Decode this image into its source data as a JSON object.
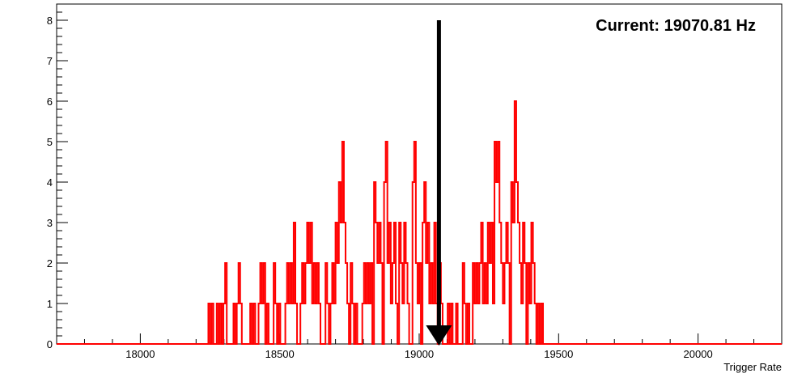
{
  "chart_data": {
    "type": "histogram",
    "xlabel": "Trigger Rate",
    "ylabel": "",
    "xlim": [
      17700,
      20300
    ],
    "ylim": [
      0,
      8.4
    ],
    "x_ticks": [
      18000,
      18500,
      19000,
      19500,
      20000
    ],
    "y_ticks": [
      0,
      1,
      2,
      3,
      4,
      5,
      6,
      7,
      8
    ],
    "annotation": "Current: 19070.81 Hz",
    "marker_x": 19070.81,
    "marker_top": 8,
    "line_color": "#ff0000",
    "marker_color": "#000000",
    "bin_width": 6,
    "bins": [
      [
        18244,
        1
      ],
      [
        18250,
        0
      ],
      [
        18256,
        1
      ],
      [
        18274,
        1
      ],
      [
        18280,
        0
      ],
      [
        18286,
        1
      ],
      [
        18292,
        0
      ],
      [
        18298,
        1
      ],
      [
        18304,
        2
      ],
      [
        18310,
        0
      ],
      [
        18334,
        1
      ],
      [
        18340,
        0
      ],
      [
        18346,
        1
      ],
      [
        18352,
        2
      ],
      [
        18358,
        1
      ],
      [
        18364,
        0
      ],
      [
        18394,
        1
      ],
      [
        18400,
        0
      ],
      [
        18406,
        1
      ],
      [
        18424,
        1
      ],
      [
        18430,
        2
      ],
      [
        18436,
        1
      ],
      [
        18442,
        2
      ],
      [
        18448,
        0
      ],
      [
        18454,
        1
      ],
      [
        18478,
        2
      ],
      [
        18484,
        1
      ],
      [
        18490,
        0
      ],
      [
        18496,
        1
      ],
      [
        18520,
        1
      ],
      [
        18526,
        2
      ],
      [
        18532,
        1
      ],
      [
        18538,
        2
      ],
      [
        18544,
        1
      ],
      [
        18550,
        3
      ],
      [
        18556,
        1
      ],
      [
        18562,
        0
      ],
      [
        18574,
        1
      ],
      [
        18580,
        2
      ],
      [
        18586,
        1
      ],
      [
        18592,
        2
      ],
      [
        18598,
        3
      ],
      [
        18604,
        2
      ],
      [
        18610,
        3
      ],
      [
        18616,
        1
      ],
      [
        18622,
        2
      ],
      [
        18628,
        1
      ],
      [
        18634,
        2
      ],
      [
        18640,
        1
      ],
      [
        18646,
        0
      ],
      [
        18664,
        2
      ],
      [
        18670,
        1
      ],
      [
        18676,
        0
      ],
      [
        18682,
        1
      ],
      [
        18688,
        2
      ],
      [
        18694,
        1
      ],
      [
        18700,
        3
      ],
      [
        18706,
        2
      ],
      [
        18712,
        4
      ],
      [
        18718,
        3
      ],
      [
        18724,
        5
      ],
      [
        18730,
        3
      ],
      [
        18736,
        2
      ],
      [
        18742,
        1
      ],
      [
        18754,
        2
      ],
      [
        18760,
        1
      ],
      [
        18766,
        0
      ],
      [
        18772,
        1
      ],
      [
        18778,
        0
      ],
      [
        18796,
        1
      ],
      [
        18802,
        2
      ],
      [
        18808,
        1
      ],
      [
        18814,
        2
      ],
      [
        18820,
        1
      ],
      [
        18826,
        2
      ],
      [
        18838,
        4
      ],
      [
        18844,
        3
      ],
      [
        18850,
        2
      ],
      [
        18856,
        3
      ],
      [
        18862,
        2
      ],
      [
        18874,
        4
      ],
      [
        18880,
        5
      ],
      [
        18886,
        2
      ],
      [
        18892,
        3
      ],
      [
        18898,
        1
      ],
      [
        18904,
        2
      ],
      [
        18910,
        3
      ],
      [
        18916,
        1
      ],
      [
        18928,
        3
      ],
      [
        18934,
        2
      ],
      [
        18940,
        1
      ],
      [
        18946,
        3
      ],
      [
        18952,
        2
      ],
      [
        18958,
        1
      ],
      [
        18976,
        4
      ],
      [
        18982,
        5
      ],
      [
        18988,
        2
      ],
      [
        18994,
        1
      ],
      [
        19000,
        2
      ],
      [
        19006,
        0
      ],
      [
        19012,
        3
      ],
      [
        19018,
        4
      ],
      [
        19024,
        2
      ],
      [
        19030,
        3
      ],
      [
        19036,
        1
      ],
      [
        19042,
        2
      ],
      [
        19048,
        1
      ],
      [
        19054,
        3
      ],
      [
        19060,
        1
      ],
      [
        19066,
        0
      ],
      [
        19072,
        2
      ],
      [
        19078,
        1
      ],
      [
        19084,
        0
      ],
      [
        19102,
        1
      ],
      [
        19108,
        0
      ],
      [
        19114,
        1
      ],
      [
        19132,
        1
      ],
      [
        19138,
        0
      ],
      [
        19156,
        2
      ],
      [
        19162,
        1
      ],
      [
        19168,
        0
      ],
      [
        19174,
        1
      ],
      [
        19192,
        2
      ],
      [
        19198,
        1
      ],
      [
        19204,
        2
      ],
      [
        19210,
        1
      ],
      [
        19216,
        2
      ],
      [
        19222,
        3
      ],
      [
        19228,
        1
      ],
      [
        19234,
        2
      ],
      [
        19240,
        1
      ],
      [
        19246,
        3
      ],
      [
        19252,
        2
      ],
      [
        19258,
        3
      ],
      [
        19264,
        1
      ],
      [
        19270,
        5
      ],
      [
        19276,
        4
      ],
      [
        19282,
        5
      ],
      [
        19288,
        3
      ],
      [
        19294,
        2
      ],
      [
        19300,
        1
      ],
      [
        19306,
        2
      ],
      [
        19312,
        3
      ],
      [
        19318,
        2
      ],
      [
        19324,
        0
      ],
      [
        19330,
        4
      ],
      [
        19336,
        3
      ],
      [
        19342,
        6
      ],
      [
        19348,
        4
      ],
      [
        19354,
        3
      ],
      [
        19360,
        2
      ],
      [
        19366,
        1
      ],
      [
        19372,
        3
      ],
      [
        19378,
        2
      ],
      [
        19384,
        0
      ],
      [
        19390,
        2
      ],
      [
        19396,
        1
      ],
      [
        19402,
        3
      ],
      [
        19408,
        2
      ],
      [
        19414,
        1
      ],
      [
        19420,
        0
      ],
      [
        19426,
        1
      ],
      [
        19432,
        0
      ],
      [
        19438,
        1
      ]
    ]
  }
}
